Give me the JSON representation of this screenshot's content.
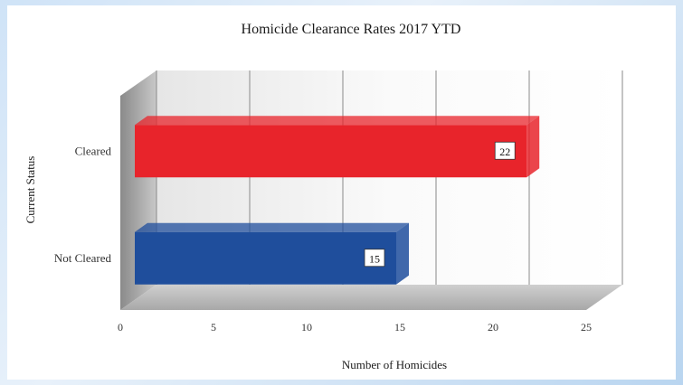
{
  "chart_data": {
    "type": "bar",
    "orientation": "horizontal",
    "title": "Homicide Clearance Rates 2017 YTD",
    "xlabel": "Number of Homicides",
    "ylabel": "Current Status",
    "categories": [
      "Cleared",
      "Not Cleared"
    ],
    "values": [
      22,
      15
    ],
    "data_labels": [
      "22",
      "15"
    ],
    "xlim": [
      0,
      25
    ],
    "xticks": [
      0,
      5,
      10,
      15,
      20,
      25
    ],
    "xtick_labels": [
      "0",
      "5",
      "10",
      "15",
      "20",
      "25"
    ],
    "bar_colors": [
      "#e8242b",
      "#1f4e9c"
    ],
    "grid": true,
    "style": "3d"
  }
}
